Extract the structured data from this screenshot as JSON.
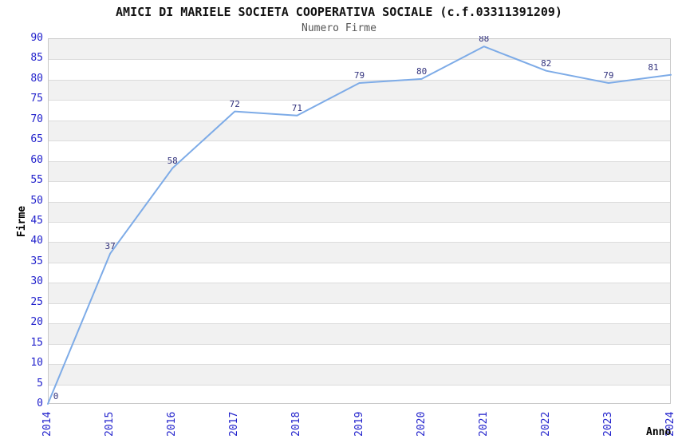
{
  "title": "AMICI DI MARIELE SOCIETA COOPERATIVA SOCIALE (c.f.03311391209)",
  "subtitle": "Numero Firme",
  "chart_data": {
    "type": "line",
    "x": [
      2014,
      2015,
      2016,
      2017,
      2018,
      2019,
      2020,
      2021,
      2022,
      2023,
      2024
    ],
    "values": [
      0,
      37,
      58,
      72,
      71,
      79,
      80,
      88,
      82,
      79,
      81
    ],
    "title": "Numero Firme",
    "xlabel": "Anno",
    "ylabel": "Firme",
    "ylim": [
      0,
      90
    ],
    "ytick_step": 5,
    "grid": "horizontal-bands-alternating",
    "legend": "none",
    "data_labels_shown": true,
    "colors": {
      "line": "#7dabe7",
      "axis_tick_label": "#2222cc",
      "data_label": "#32327d",
      "band_gray": "#f1f1f1",
      "gridline": "#dcdcdc",
      "plot_border": "#c9c9c9",
      "title_text": "#111111",
      "subtitle_text": "#555555"
    }
  }
}
